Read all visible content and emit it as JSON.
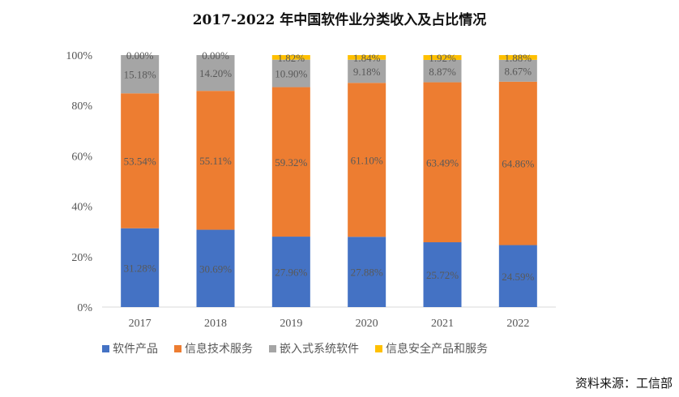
{
  "chart_data": {
    "type": "bar",
    "stacked": true,
    "title": "2017-2022 年中国软件业分类收入及占比情况",
    "categories": [
      "2017",
      "2018",
      "2019",
      "2020",
      "2021",
      "2022"
    ],
    "series": [
      {
        "name": "软件产品",
        "color": "#4472C4",
        "values": [
          31.28,
          30.69,
          27.96,
          27.88,
          25.72,
          24.59
        ],
        "labels": [
          "31.28%",
          "30.69%",
          "27.96%",
          "27.88%",
          "25.72%",
          "24.59%"
        ]
      },
      {
        "name": "信息技术服务",
        "color": "#ED7D31",
        "values": [
          53.54,
          55.11,
          59.32,
          61.1,
          63.49,
          64.86
        ],
        "labels": [
          "53.54%",
          "55.11%",
          "59.32%",
          "61.10%",
          "63.49%",
          "64.86%"
        ]
      },
      {
        "name": "嵌入式系统软件",
        "color": "#A5A5A5",
        "values": [
          15.18,
          14.2,
          10.9,
          9.18,
          8.87,
          8.67
        ],
        "labels": [
          "15.18%",
          "14.20%",
          "10.90%",
          "9.18%",
          "8.87%",
          "8.67%"
        ]
      },
      {
        "name": "信息安全产品和服务",
        "color": "#FFC000",
        "values": [
          0.0,
          0.0,
          1.82,
          1.84,
          1.92,
          1.88
        ],
        "labels": [
          "0.00%",
          "0.00%",
          "1.82%",
          "1.84%",
          "1.92%",
          "1.88%"
        ]
      }
    ],
    "ylim": [
      0,
      100
    ],
    "yticks": [
      "0%",
      "20%",
      "40%",
      "60%",
      "80%",
      "100%"
    ],
    "grid": false,
    "legend_position": "bottom"
  },
  "source_note": "资料来源：工信部"
}
